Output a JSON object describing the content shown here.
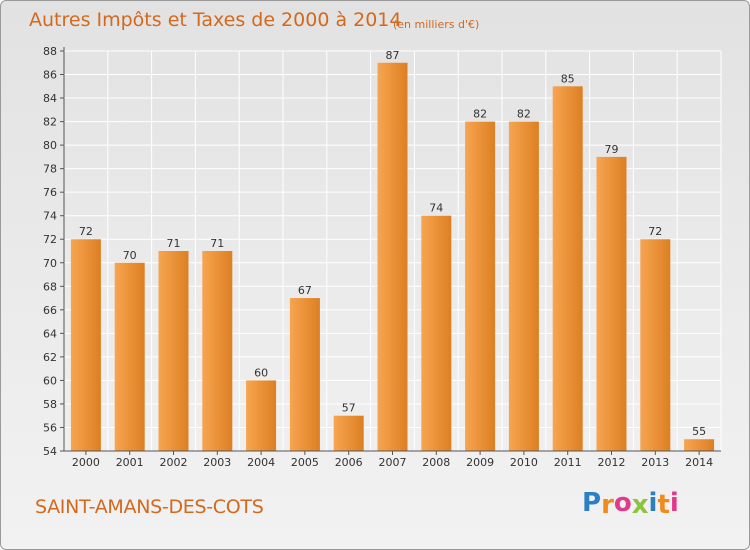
{
  "header": {
    "title": "Autres Impôts et Taxes de 2000 à 2014",
    "subtitle": "(en milliers d'€)"
  },
  "footer": {
    "commune": "SAINT-AMANS-DES-COTS",
    "logo_letters": [
      "P",
      "r",
      "o",
      "x",
      "i",
      "t",
      "i"
    ],
    "logo_colors": [
      "#2b7fc2",
      "#f08a1a",
      "#e23a8a",
      "#8cc43c",
      "#2b7fc2",
      "#f08a1a",
      "#e23a8a"
    ]
  },
  "chart_data": {
    "type": "bar",
    "title": "Autres Impôts et Taxes de 2000 à 2014",
    "subtitle": "(en milliers d'€)",
    "categories": [
      "2000",
      "2001",
      "2002",
      "2003",
      "2004",
      "2005",
      "2006",
      "2007",
      "2008",
      "2009",
      "2010",
      "2011",
      "2012",
      "2013",
      "2014"
    ],
    "values": [
      72,
      70,
      71,
      71,
      60,
      67,
      57,
      87,
      74,
      82,
      82,
      85,
      79,
      72,
      55
    ],
    "data_labels": [
      "72",
      "70",
      "71",
      "71",
      "60",
      "67",
      "57",
      "87",
      "74",
      "82",
      "82",
      "85",
      "79",
      "72",
      "55"
    ],
    "ylim": [
      54,
      88
    ],
    "yticks": [
      "54",
      "56",
      "58",
      "60",
      "62",
      "64",
      "66",
      "68",
      "70",
      "72",
      "74",
      "76",
      "78",
      "80",
      "82",
      "84",
      "86",
      "88"
    ],
    "grid": true,
    "xlabel": "",
    "ylabel": "",
    "colors": {
      "bar_light": "#f7a551",
      "bar_dark": "#dd7f22",
      "text": "#d2691e",
      "label": "#333333",
      "axis": "#555555",
      "grid": "#ffffff"
    }
  }
}
